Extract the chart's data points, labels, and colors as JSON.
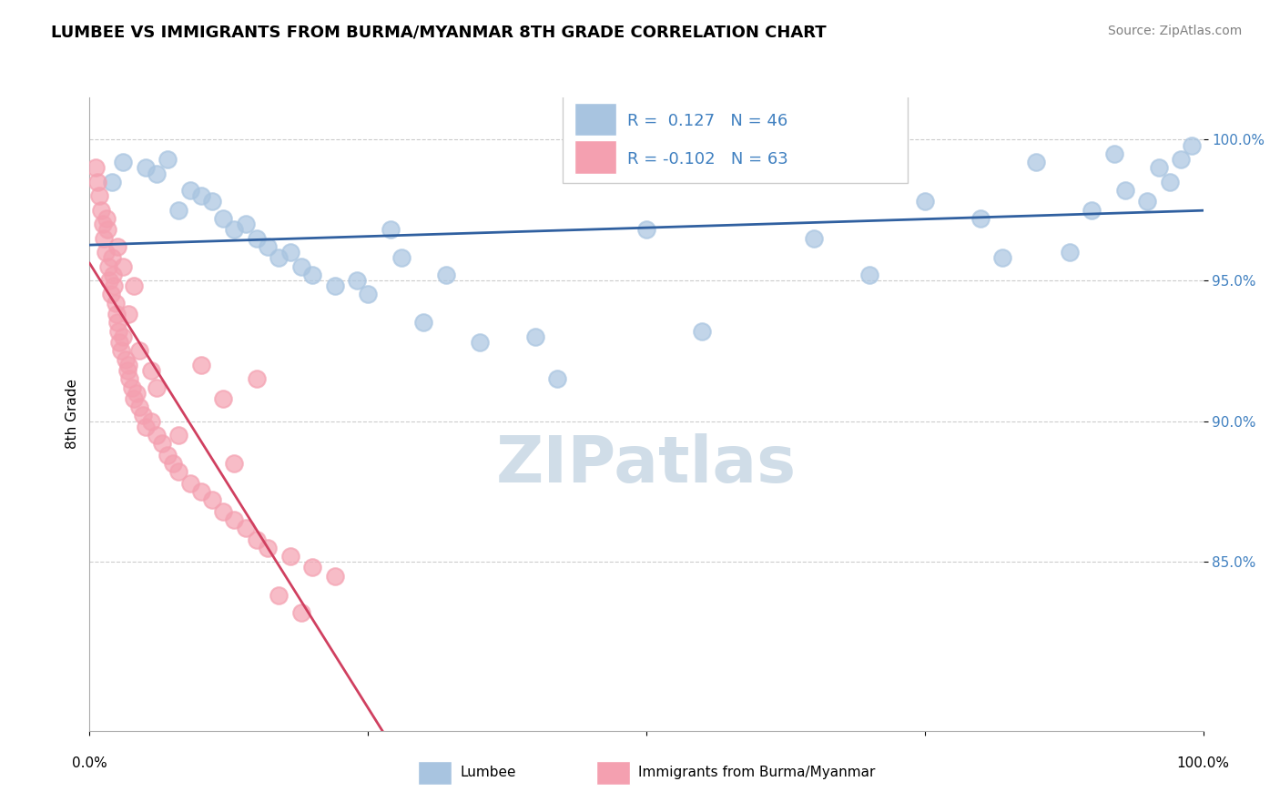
{
  "title": "LUMBEE VS IMMIGRANTS FROM BURMA/MYANMAR 8TH GRADE CORRELATION CHART",
  "source": "Source: ZipAtlas.com",
  "ylabel": "8th Grade",
  "xlim": [
    0.0,
    1.0
  ],
  "ylim": [
    79.0,
    101.5
  ],
  "R_blue": 0.127,
  "N_blue": 46,
  "R_pink": -0.102,
  "N_pink": 63,
  "blue_color": "#a8c4e0",
  "pink_color": "#f4a0b0",
  "blue_line_color": "#3060a0",
  "pink_line_color": "#d04060",
  "grid_color": "#cccccc",
  "watermark_color": "#d0dde8",
  "legend_R_color": "#4080c0",
  "blue_scatter": [
    [
      0.02,
      98.5
    ],
    [
      0.03,
      99.2
    ],
    [
      0.05,
      99.0
    ],
    [
      0.06,
      98.8
    ],
    [
      0.07,
      99.3
    ],
    [
      0.08,
      97.5
    ],
    [
      0.09,
      98.2
    ],
    [
      0.1,
      98.0
    ],
    [
      0.11,
      97.8
    ],
    [
      0.12,
      97.2
    ],
    [
      0.13,
      96.8
    ],
    [
      0.14,
      97.0
    ],
    [
      0.15,
      96.5
    ],
    [
      0.16,
      96.2
    ],
    [
      0.17,
      95.8
    ],
    [
      0.18,
      96.0
    ],
    [
      0.19,
      95.5
    ],
    [
      0.2,
      95.2
    ],
    [
      0.22,
      94.8
    ],
    [
      0.24,
      95.0
    ],
    [
      0.25,
      94.5
    ],
    [
      0.27,
      96.8
    ],
    [
      0.28,
      95.8
    ],
    [
      0.3,
      93.5
    ],
    [
      0.32,
      95.2
    ],
    [
      0.35,
      92.8
    ],
    [
      0.4,
      93.0
    ],
    [
      0.42,
      91.5
    ],
    [
      0.5,
      96.8
    ],
    [
      0.55,
      93.2
    ],
    [
      0.6,
      99.5
    ],
    [
      0.65,
      96.5
    ],
    [
      0.7,
      95.2
    ],
    [
      0.75,
      97.8
    ],
    [
      0.8,
      97.2
    ],
    [
      0.82,
      95.8
    ],
    [
      0.85,
      99.2
    ],
    [
      0.88,
      96.0
    ],
    [
      0.9,
      97.5
    ],
    [
      0.92,
      99.5
    ],
    [
      0.93,
      98.2
    ],
    [
      0.95,
      97.8
    ],
    [
      0.96,
      99.0
    ],
    [
      0.97,
      98.5
    ],
    [
      0.98,
      99.3
    ],
    [
      0.99,
      99.8
    ]
  ],
  "pink_scatter": [
    [
      0.005,
      99.0
    ],
    [
      0.007,
      98.5
    ],
    [
      0.009,
      98.0
    ],
    [
      0.01,
      97.5
    ],
    [
      0.012,
      97.0
    ],
    [
      0.013,
      96.5
    ],
    [
      0.014,
      96.0
    ],
    [
      0.015,
      97.2
    ],
    [
      0.016,
      96.8
    ],
    [
      0.017,
      95.5
    ],
    [
      0.018,
      95.0
    ],
    [
      0.019,
      94.5
    ],
    [
      0.02,
      95.8
    ],
    [
      0.021,
      95.2
    ],
    [
      0.022,
      94.8
    ],
    [
      0.023,
      94.2
    ],
    [
      0.024,
      93.8
    ],
    [
      0.025,
      93.5
    ],
    [
      0.026,
      93.2
    ],
    [
      0.027,
      92.8
    ],
    [
      0.028,
      92.5
    ],
    [
      0.03,
      93.0
    ],
    [
      0.032,
      92.2
    ],
    [
      0.034,
      91.8
    ],
    [
      0.035,
      92.0
    ],
    [
      0.036,
      91.5
    ],
    [
      0.038,
      91.2
    ],
    [
      0.04,
      90.8
    ],
    [
      0.042,
      91.0
    ],
    [
      0.045,
      90.5
    ],
    [
      0.048,
      90.2
    ],
    [
      0.05,
      89.8
    ],
    [
      0.055,
      90.0
    ],
    [
      0.06,
      89.5
    ],
    [
      0.065,
      89.2
    ],
    [
      0.07,
      88.8
    ],
    [
      0.075,
      88.5
    ],
    [
      0.08,
      88.2
    ],
    [
      0.09,
      87.8
    ],
    [
      0.1,
      87.5
    ],
    [
      0.11,
      87.2
    ],
    [
      0.12,
      86.8
    ],
    [
      0.13,
      86.5
    ],
    [
      0.14,
      86.2
    ],
    [
      0.15,
      85.8
    ],
    [
      0.16,
      85.5
    ],
    [
      0.18,
      85.2
    ],
    [
      0.2,
      84.8
    ],
    [
      0.22,
      84.5
    ],
    [
      0.1,
      92.0
    ],
    [
      0.15,
      91.5
    ],
    [
      0.12,
      90.8
    ],
    [
      0.06,
      91.2
    ],
    [
      0.08,
      89.5
    ],
    [
      0.03,
      95.5
    ],
    [
      0.04,
      94.8
    ],
    [
      0.025,
      96.2
    ],
    [
      0.035,
      93.8
    ],
    [
      0.045,
      92.5
    ],
    [
      0.055,
      91.8
    ],
    [
      0.13,
      88.5
    ],
    [
      0.17,
      83.8
    ],
    [
      0.19,
      83.2
    ]
  ]
}
